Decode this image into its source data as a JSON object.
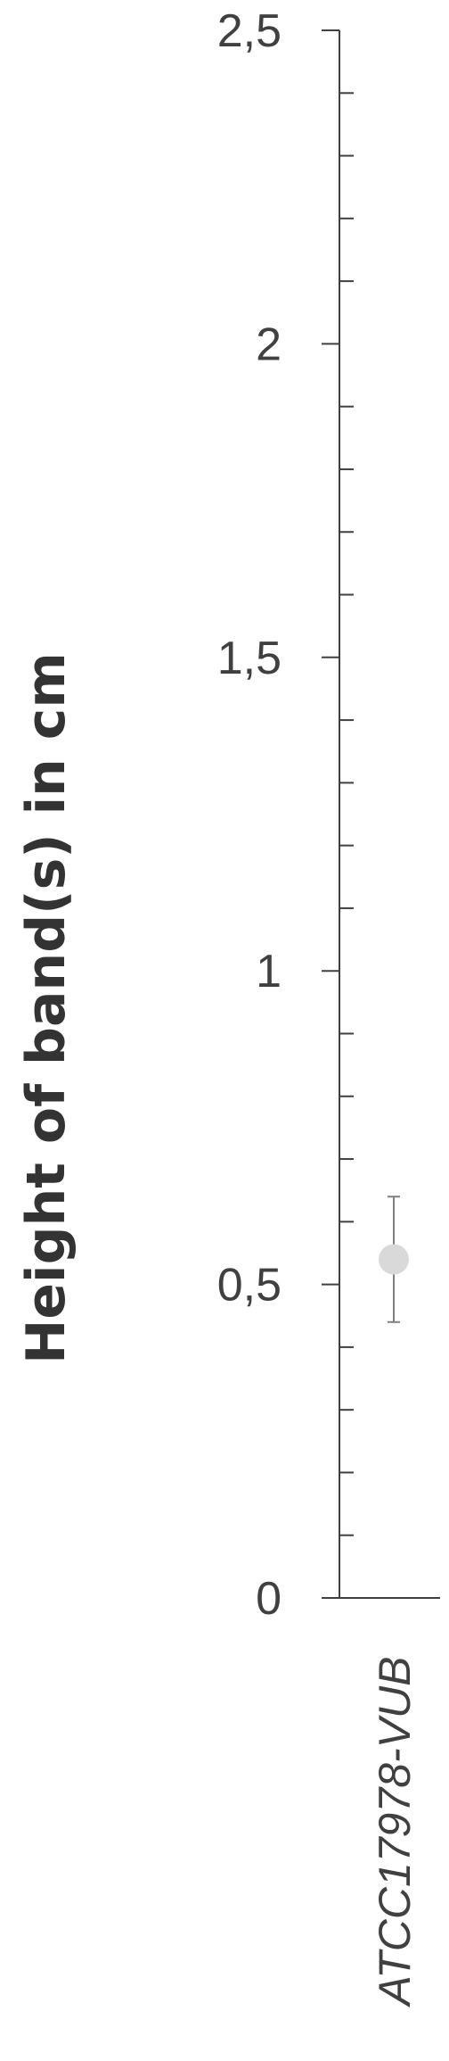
{
  "chart_data": {
    "type": "scatter",
    "ylabel": "Height of band(s) in cm",
    "xlabel": "",
    "ylim": [
      0,
      2.5
    ],
    "y_ticks": [
      {
        "value": 0,
        "label": "0"
      },
      {
        "value": 0.5,
        "label": "0,5"
      },
      {
        "value": 1,
        "label": "1"
      },
      {
        "value": 1.5,
        "label": "1,5"
      },
      {
        "value": 2,
        "label": "2"
      },
      {
        "value": 2.5,
        "label": "2,5"
      }
    ],
    "minor_tick_step": 0.1,
    "categories": [
      "ATCC17978-VUB"
    ],
    "values": [
      0.54
    ],
    "error_low": [
      0.44
    ],
    "error_high": [
      0.64
    ],
    "grid": false,
    "colors": {
      "marker": "#d9d9d9",
      "axis": "#404040",
      "error_bar": "#7f7f7f"
    }
  }
}
